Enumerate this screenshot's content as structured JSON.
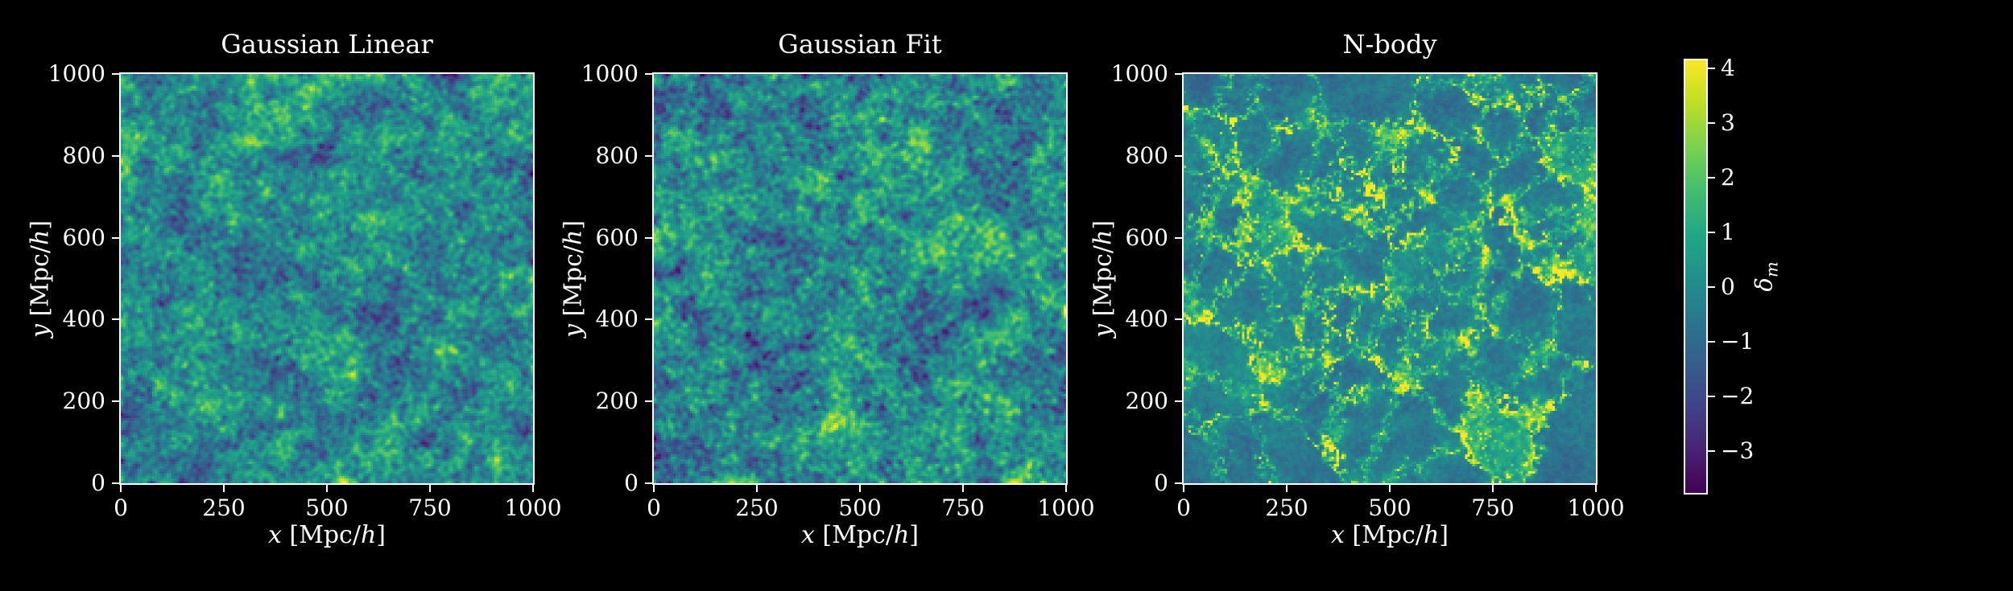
{
  "figure": {
    "background": "#000000",
    "text_color": "#ffffff",
    "spine_color": "#ffffff"
  },
  "chart_data": {
    "type": "heatmap",
    "description": "Three 2D matter overdensity field slices (1000 x 1000 Mpc/h) shown side by side with a shared viridis color scale",
    "panels": [
      {
        "title": "Gaussian Linear",
        "field_type": "gaussian_random_field",
        "seed": 101,
        "amplitude": 0.92
      },
      {
        "title": "Gaussian Fit",
        "field_type": "gaussian_random_field",
        "seed": 202,
        "amplitude": 1.02
      },
      {
        "title": "N-body",
        "field_type": "cosmic_web",
        "seed": 303,
        "amplitude": 1.0
      }
    ],
    "x_axis": {
      "label": "x [Mpc/h]",
      "label_var": "x",
      "label_unit_pre": " [Mpc/",
      "label_unit_var": "h",
      "label_unit_post": "]",
      "range": [
        0,
        1000
      ],
      "ticks": [
        {
          "value": 0,
          "label": "0"
        },
        {
          "value": 250,
          "label": "250"
        },
        {
          "value": 500,
          "label": "500"
        },
        {
          "value": 750,
          "label": "750"
        },
        {
          "value": 1000,
          "label": "1000"
        }
      ]
    },
    "y_axis": {
      "label": "y [Mpc/h]",
      "label_var": "y",
      "label_unit_pre": " [Mpc/",
      "label_unit_var": "h",
      "label_unit_post": "]",
      "range": [
        0,
        1000
      ],
      "ticks": [
        {
          "value": 0,
          "label": "0"
        },
        {
          "value": 200,
          "label": "200"
        },
        {
          "value": 400,
          "label": "400"
        },
        {
          "value": 600,
          "label": "600"
        },
        {
          "value": 800,
          "label": "800"
        },
        {
          "value": 1000,
          "label": "1000"
        }
      ]
    },
    "colorbar": {
      "label": "δm",
      "label_main": "δ",
      "label_sub": "m",
      "colormap": "viridis",
      "vmin": -3.77,
      "vmax": 4.15,
      "ticks": [
        {
          "value": 4,
          "label": "4"
        },
        {
          "value": 3,
          "label": "3"
        },
        {
          "value": 2,
          "label": "2"
        },
        {
          "value": 1,
          "label": "1"
        },
        {
          "value": 0,
          "label": "0"
        },
        {
          "value": -1,
          "label": "−1"
        },
        {
          "value": -2,
          "label": "−2"
        },
        {
          "value": -3,
          "label": "−3"
        }
      ]
    },
    "colormap_stops": [
      [
        0.0,
        68,
        1,
        84
      ],
      [
        0.1,
        72,
        36,
        117
      ],
      [
        0.2,
        65,
        68,
        135
      ],
      [
        0.3,
        53,
        95,
        141
      ],
      [
        0.4,
        42,
        120,
        142
      ],
      [
        0.5,
        33,
        145,
        140
      ],
      [
        0.6,
        34,
        168,
        132
      ],
      [
        0.7,
        68,
        190,
        112
      ],
      [
        0.8,
        122,
        209,
        81
      ],
      [
        0.9,
        189,
        223,
        38
      ],
      [
        1.0,
        253,
        231,
        37
      ]
    ]
  }
}
